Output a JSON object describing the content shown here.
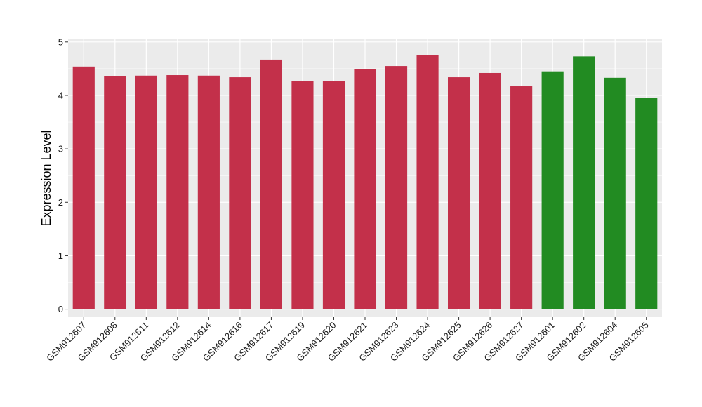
{
  "chart_data": {
    "type": "bar",
    "title": "",
    "xlabel": "",
    "ylabel": "Expression Level",
    "ylim": [
      -0.15,
      5.05
    ],
    "yticks": [
      0,
      1,
      2,
      3,
      4,
      5
    ],
    "grid": true,
    "legend": "none",
    "categories": [
      "GSM912607",
      "GSM912608",
      "GSM912611",
      "GSM912612",
      "GSM912614",
      "GSM912616",
      "GSM912617",
      "GSM912619",
      "GSM912620",
      "GSM912621",
      "GSM912623",
      "GSM912624",
      "GSM912625",
      "GSM912626",
      "GSM912627",
      "GSM912601",
      "GSM912602",
      "GSM912604",
      "GSM912605"
    ],
    "values": [
      4.54,
      4.36,
      4.37,
      4.38,
      4.37,
      4.34,
      4.67,
      4.27,
      4.27,
      4.49,
      4.55,
      4.76,
      4.34,
      4.42,
      4.17,
      4.45,
      4.73,
      4.33,
      3.96
    ],
    "bar_colors": [
      "#c3304a",
      "#c3304a",
      "#c3304a",
      "#c3304a",
      "#c3304a",
      "#c3304a",
      "#c3304a",
      "#c3304a",
      "#c3304a",
      "#c3304a",
      "#c3304a",
      "#c3304a",
      "#c3304a",
      "#c3304a",
      "#c3304a",
      "#228b22",
      "#228b22",
      "#228b22",
      "#228b22"
    ],
    "panel_background": "#ebebeb",
    "grid_color": "#ffffff"
  }
}
